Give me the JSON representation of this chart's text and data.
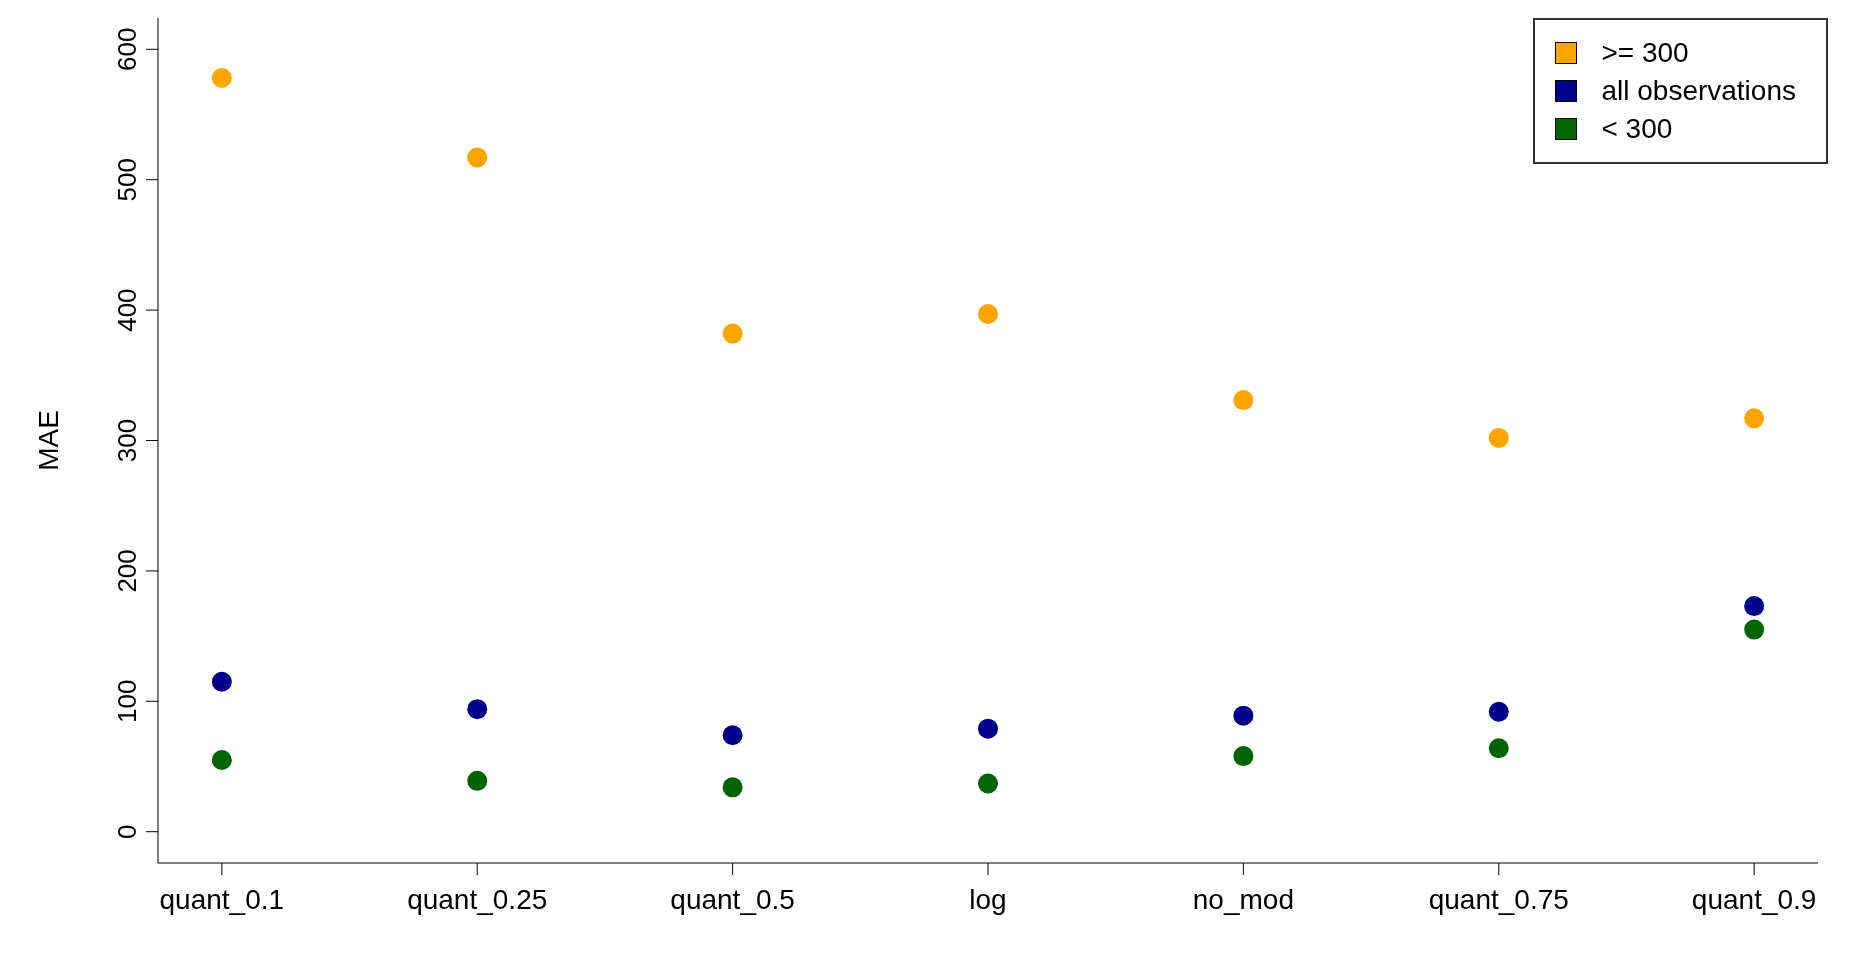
{
  "chart_data": {
    "type": "scatter",
    "ylabel": "MAE",
    "categories": [
      "quant_0.1",
      "quant_0.25",
      "quant_0.5",
      "log",
      "no_mod",
      "quant_0.75",
      "quant_0.9"
    ],
    "series": [
      {
        "name": ">= 300",
        "color": "#ffa500",
        "values": [
          578,
          517,
          382,
          397,
          331,
          302,
          317
        ]
      },
      {
        "name": "all observations",
        "color": "#00008b",
        "values": [
          115,
          94,
          74,
          79,
          89,
          92,
          173
        ]
      },
      {
        "name": "< 300",
        "color": "#006400",
        "values": [
          55,
          39,
          34,
          37,
          58,
          64,
          155
        ]
      }
    ],
    "ylim": [
      -24,
      624
    ],
    "yticks": [
      0,
      100,
      200,
      300,
      400,
      500,
      600
    ],
    "legend": "top right",
    "marker": "circle"
  }
}
